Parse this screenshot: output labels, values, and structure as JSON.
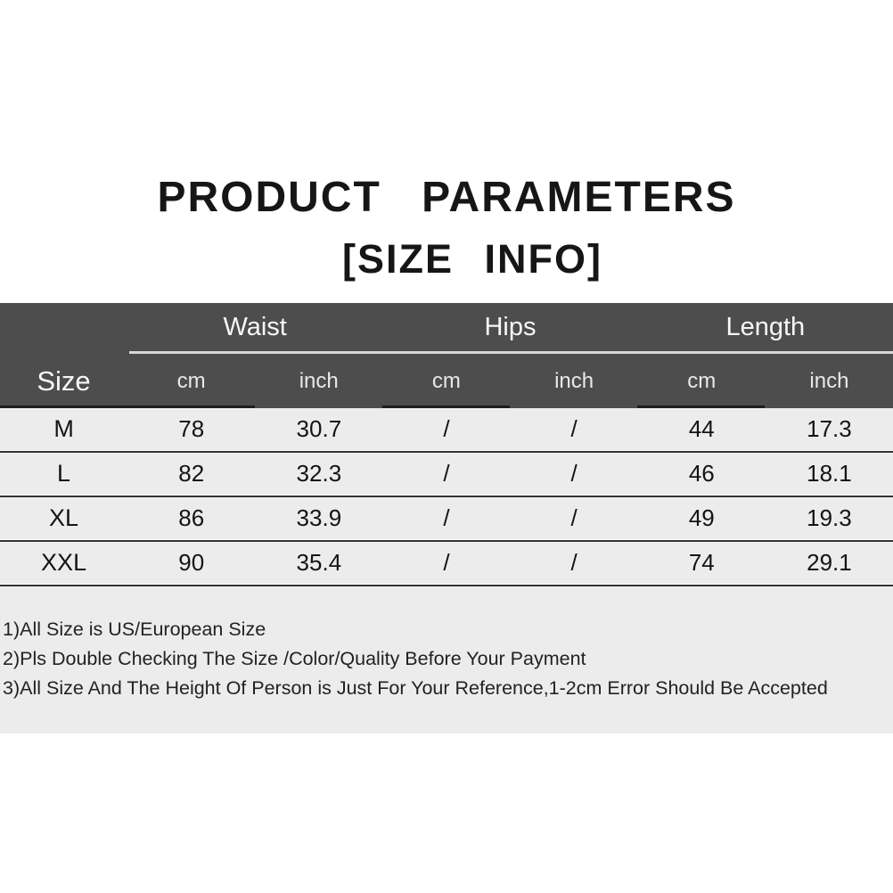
{
  "title": {
    "line1": "PRODUCT PARAMETERS",
    "line2": "[SIZE INFO]"
  },
  "table": {
    "corner_label": "Size",
    "groups": [
      {
        "label": "Waist"
      },
      {
        "label": "Hips"
      },
      {
        "label": "Length"
      }
    ],
    "sub_headers": [
      "cm",
      "inch",
      "cm",
      "inch",
      "cm",
      "inch"
    ],
    "rows": [
      {
        "size": "M",
        "values": [
          "78",
          "30.7",
          "/",
          "/",
          "44",
          "17.3"
        ]
      },
      {
        "size": "L",
        "values": [
          "82",
          "32.3",
          "/",
          "/",
          "46",
          "18.1"
        ]
      },
      {
        "size": "XL",
        "values": [
          "86",
          "33.9",
          "/",
          "/",
          "49",
          "19.3"
        ]
      },
      {
        "size": "XXL",
        "values": [
          "90",
          "35.4",
          "/",
          "/",
          "74",
          "29.1"
        ]
      }
    ]
  },
  "notes": [
    "1)All Size is US/European Size",
    "2)Pls Double Checking The Size /Color/Quality Before Your Payment",
    "3)All Size And The Height Of Person is Just For Your Reference,1-2cm Error Should Be Accepted"
  ],
  "colors": {
    "header_background": "#4d4d4d",
    "header_text": "#f7f7f7",
    "row_background": "#ececec",
    "separator_dark": "#333333",
    "group_underline": "#d8d8d8",
    "title_text": "#161616",
    "page_background": "#ffffff"
  }
}
